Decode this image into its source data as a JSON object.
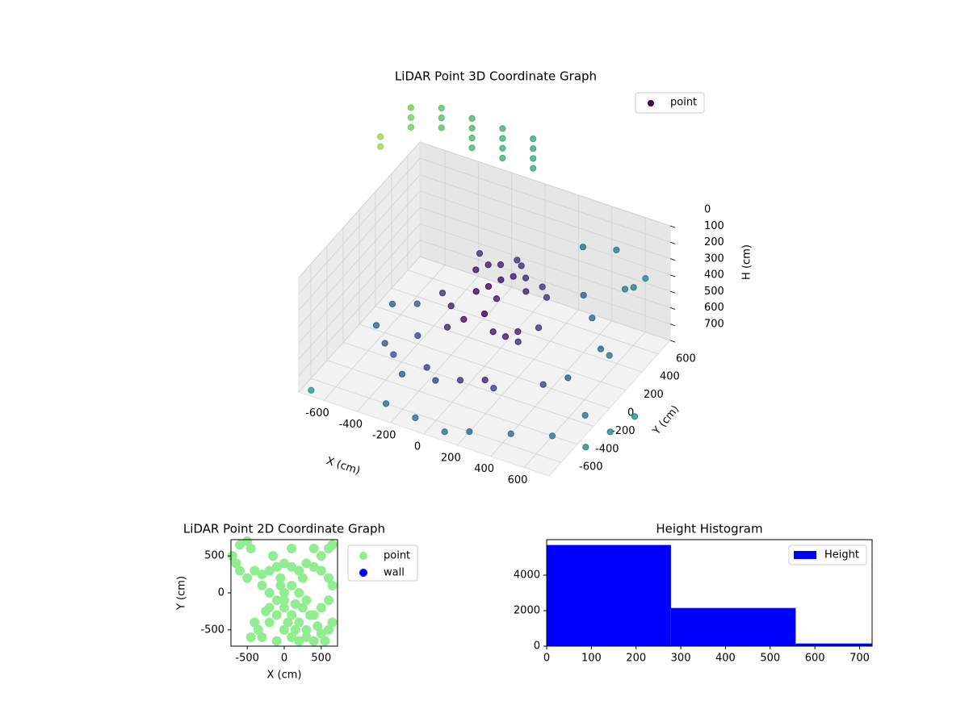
{
  "chart_data": [
    {
      "type": "scatter3d",
      "title": "LiDAR Point 3D Coordinate Graph",
      "xlabel": "X (cm)",
      "ylabel": "Y (cm)",
      "zlabel": "H (cm)",
      "xlim": [
        -750,
        750
      ],
      "ylim": [
        -750,
        750
      ],
      "zlim": [
        700,
        0
      ],
      "xticks": [
        -600,
        -400,
        -200,
        0,
        200,
        400,
        600
      ],
      "yticks": [
        -600,
        -400,
        -200,
        0,
        200,
        400,
        600
      ],
      "zticks": [
        0,
        100,
        200,
        300,
        400,
        500,
        600,
        700
      ],
      "legend": "upper right",
      "colormap": "viridis",
      "grid": true,
      "series": [
        {
          "name": "point",
          "color": "#440154",
          "x": [
            -100,
            -50,
            0,
            50,
            100,
            150,
            200,
            -150,
            0,
            100,
            250,
            300,
            -50,
            50,
            -200,
            -100,
            0,
            100,
            200,
            300,
            -300,
            0,
            150,
            -150,
            250,
            -600,
            -500,
            -400,
            -300,
            -200,
            -100,
            0,
            100,
            200,
            -600,
            -500,
            400,
            500,
            -400,
            400,
            500,
            600,
            700,
            600,
            700,
            500,
            300,
            650,
            700,
            200,
            100,
            -100,
            400,
            600,
            -300,
            -700,
            800,
            850,
            900,
            -241,
            -241,
            -241,
            -241,
            -424,
            -424,
            -424,
            -424,
            -607,
            -607,
            -607,
            -607,
            -790,
            -790,
            -790,
            -973,
            -973,
            -973,
            -1156,
            -1156
          ],
          "y": [
            100,
            150,
            200,
            100,
            150,
            200,
            100,
            250,
            50,
            250,
            200,
            150,
            0,
            300,
            0,
            -50,
            0,
            -100,
            0,
            50,
            100,
            150,
            -50,
            -150,
            -100,
            -100,
            -200,
            -300,
            -400,
            -300,
            -400,
            -300,
            -200,
            -300,
            100,
            200,
            -100,
            0,
            0,
            400,
            300,
            500,
            400,
            200,
            100,
            600,
            600,
            650,
            -200,
            -600,
            -700,
            -650,
            -500,
            -400,
            -600,
            -700,
            -400,
            -200,
            0,
            1100,
            1100,
            1100,
            1100,
            1100,
            1100,
            1100,
            1100,
            1100,
            1100,
            1100,
            1100,
            1100,
            1100,
            1100,
            1100,
            1100,
            1100,
            1100,
            1100
          ],
          "z": [
            200,
            180,
            190,
            210,
            200,
            220,
            230,
            200,
            240,
            190,
            240,
            260,
            260,
            200,
            400,
            420,
            380,
            400,
            420,
            390,
            410,
            370,
            440,
            430,
            410,
            600,
            620,
            600,
            630,
            610,
            600,
            620,
            640,
            600,
            580,
            600,
            620,
            600,
            650,
            350,
            400,
            300,
            200,
            500,
            450,
            150,
            200,
            300,
            650,
            700,
            680,
            690,
            700,
            700,
            700,
            700,
            700,
            700,
            700,
            0,
            60,
            120,
            180,
            0,
            60,
            120,
            180,
            0,
            60,
            120,
            180,
            0,
            60,
            120,
            60,
            120,
            180,
            300,
            360
          ]
        }
      ]
    },
    {
      "type": "scatter",
      "title": "LiDAR Point 2D Coordinate Graph",
      "xlabel": "X (cm)",
      "ylabel": "Y (cm)",
      "xlim": [
        -720,
        720
      ],
      "ylim": [
        -720,
        720
      ],
      "xticks": [
        -500,
        0,
        500
      ],
      "yticks": [
        -500,
        0,
        500
      ],
      "legend": "outside",
      "series": [
        {
          "name": "point",
          "color": "#90ee90",
          "x": [
            -650,
            -600,
            -500,
            -400,
            -300,
            -200,
            -100,
            0,
            100,
            200,
            300,
            400,
            500,
            600,
            650,
            -300,
            -200,
            -100,
            0,
            100,
            200,
            300,
            400,
            500,
            600,
            650,
            -100,
            -200,
            -300,
            -100,
            0,
            100,
            200,
            300,
            400,
            500,
            600,
            -400,
            -450,
            -250,
            0,
            100,
            200,
            300,
            150,
            -50,
            250,
            -600,
            -500,
            -450,
            600,
            500,
            650,
            400,
            -700,
            -350,
            50,
            350,
            450,
            550,
            -150,
            100,
            -50,
            -200,
            0,
            250,
            150
          ],
          "y": [
            400,
            300,
            200,
            300,
            250,
            300,
            350,
            400,
            350,
            300,
            400,
            350,
            300,
            200,
            100,
            100,
            0,
            -100,
            -200,
            -300,
            -400,
            -500,
            -300,
            -200,
            -100,
            -400,
            -300,
            -400,
            -600,
            -650,
            -500,
            -600,
            -650,
            -600,
            -650,
            -550,
            -500,
            -400,
            -600,
            -250,
            0,
            100,
            0,
            -100,
            -150,
            200,
            200,
            650,
            700,
            600,
            600,
            500,
            650,
            600,
            500,
            -500,
            -400,
            -300,
            -450,
            -650,
            500,
            600,
            100,
            -200,
            -100,
            -200,
            -500
          ]
        },
        {
          "name": "wall",
          "color": "#0000ff",
          "x": [],
          "y": []
        }
      ]
    },
    {
      "type": "histogram",
      "title": "Height Histogram",
      "bins": [
        0,
        278,
        557,
        835
      ],
      "xlim": [
        0,
        728
      ],
      "ylim": [
        0,
        6000
      ],
      "xticks": [
        0,
        100,
        200,
        300,
        400,
        500,
        600,
        700
      ],
      "yticks": [
        0,
        2000,
        4000
      ],
      "legend": "upper right",
      "series": [
        {
          "name": "Height",
          "color": "#0000ff",
          "values": [
            5700,
            2150,
            150
          ]
        }
      ]
    }
  ]
}
